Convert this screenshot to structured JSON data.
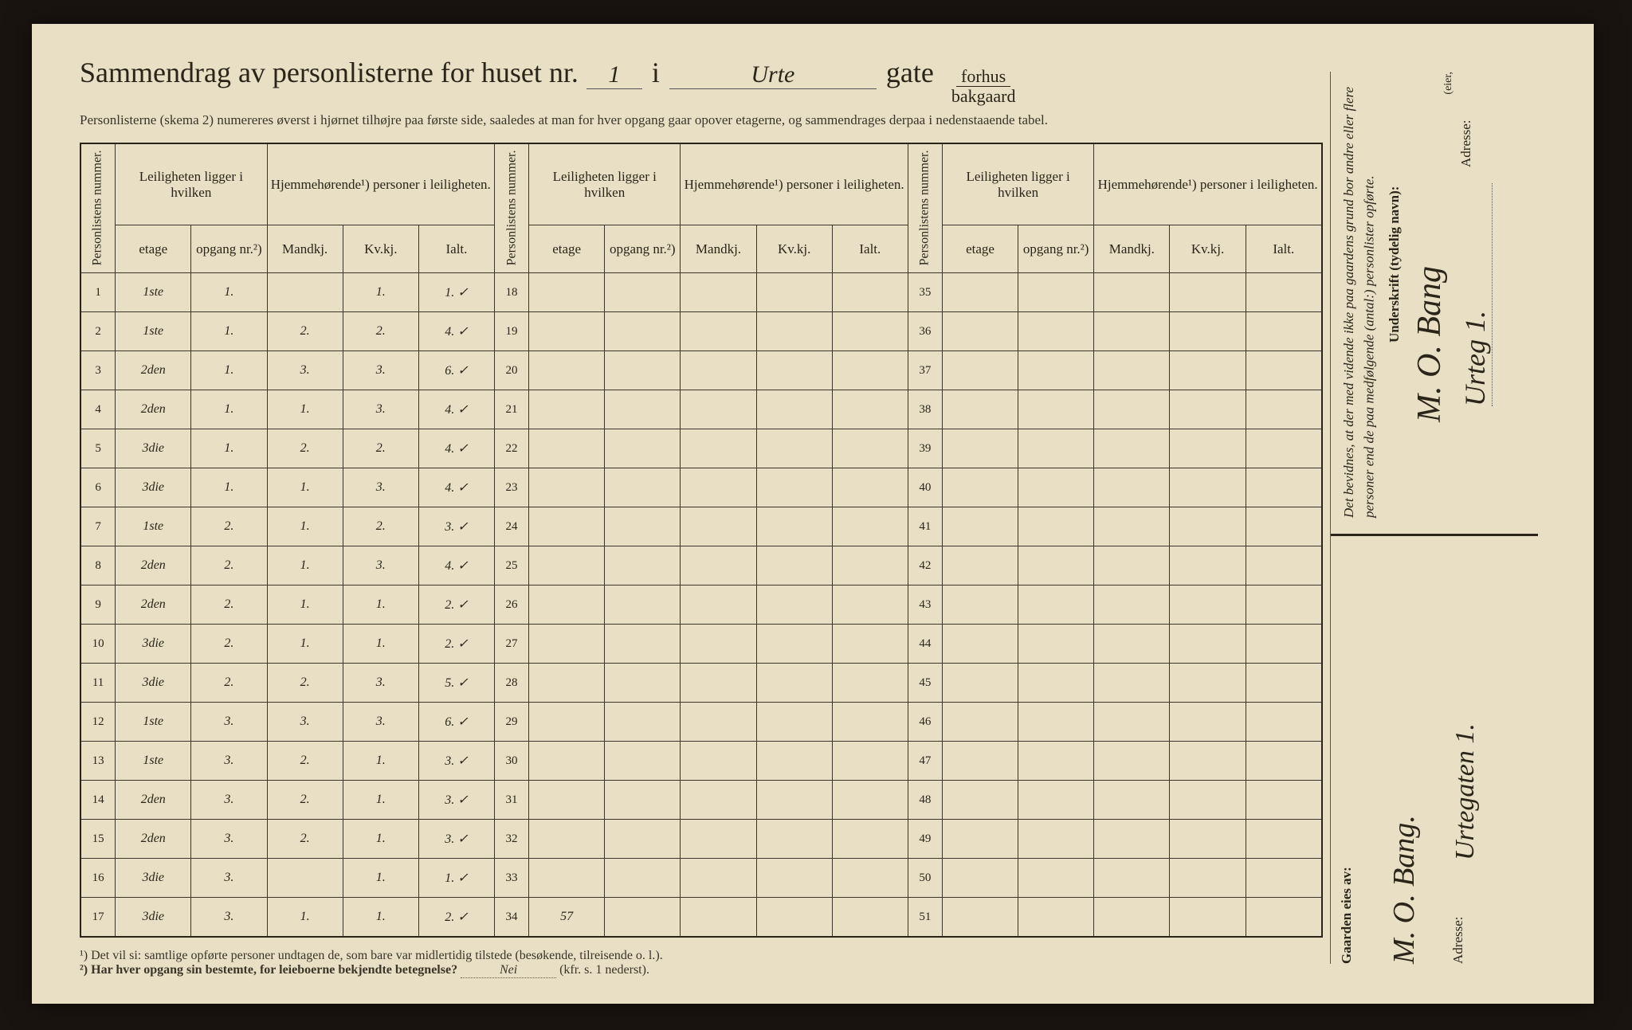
{
  "title": {
    "prefix": "Sammendrag av personlisterne for huset nr.",
    "house_nr": "1",
    "word_i": "i",
    "street": "Urte",
    "word_gate": "gate",
    "forhus": "forhus",
    "bakgaard": "bakgaard"
  },
  "subtitle": "Personlisterne (skema 2) numereres øverst i hjørnet tilhøjre paa første side, saaledes at man for hver opgang gaar opover etagerne, og sammendrages derpaa i nedenstaaende tabel.",
  "headers": {
    "personlistens_nummer": "Personlistens nummer.",
    "leiligheten": "Leiligheten ligger i hvilken",
    "hjemmehorende": "Hjemmehørende¹) personer i leiligheten.",
    "etage": "etage",
    "opgang": "opgang nr.²)",
    "mandkj": "Mandkj.",
    "kvkj": "Kv.kj.",
    "ialt": "Ialt."
  },
  "rows": [
    {
      "n": "1",
      "etage": "1ste",
      "opg": "1.",
      "m": "",
      "k": "1.",
      "i": "1. ✓"
    },
    {
      "n": "2",
      "etage": "1ste",
      "opg": "1.",
      "m": "2.",
      "k": "2.",
      "i": "4. ✓"
    },
    {
      "n": "3",
      "etage": "2den",
      "opg": "1.",
      "m": "3.",
      "k": "3.",
      "i": "6. ✓"
    },
    {
      "n": "4",
      "etage": "2den",
      "opg": "1.",
      "m": "1.",
      "k": "3.",
      "i": "4. ✓"
    },
    {
      "n": "5",
      "etage": "3die",
      "opg": "1.",
      "m": "2.",
      "k": "2.",
      "i": "4. ✓"
    },
    {
      "n": "6",
      "etage": "3die",
      "opg": "1.",
      "m": "1.",
      "k": "3.",
      "i": "4. ✓"
    },
    {
      "n": "7",
      "etage": "1ste",
      "opg": "2.",
      "m": "1.",
      "k": "2.",
      "i": "3. ✓"
    },
    {
      "n": "8",
      "etage": "2den",
      "opg": "2.",
      "m": "1.",
      "k": "3.",
      "i": "4. ✓"
    },
    {
      "n": "9",
      "etage": "2den",
      "opg": "2.",
      "m": "1.",
      "k": "1.",
      "i": "2. ✓"
    },
    {
      "n": "10",
      "etage": "3die",
      "opg": "2.",
      "m": "1.",
      "k": "1.",
      "i": "2. ✓"
    },
    {
      "n": "11",
      "etage": "3die",
      "opg": "2.",
      "m": "2.",
      "k": "3.",
      "i": "5. ✓"
    },
    {
      "n": "12",
      "etage": "1ste",
      "opg": "3.",
      "m": "3.",
      "k": "3.",
      "i": "6. ✓"
    },
    {
      "n": "13",
      "etage": "1ste",
      "opg": "3.",
      "m": "2.",
      "k": "1.",
      "i": "3. ✓"
    },
    {
      "n": "14",
      "etage": "2den",
      "opg": "3.",
      "m": "2.",
      "k": "1.",
      "i": "3. ✓"
    },
    {
      "n": "15",
      "etage": "2den",
      "opg": "3.",
      "m": "2.",
      "k": "1.",
      "i": "3. ✓"
    },
    {
      "n": "16",
      "etage": "3die",
      "opg": "3.",
      "m": "",
      "k": "1.",
      "i": "1. ✓"
    },
    {
      "n": "17",
      "etage": "3die",
      "opg": "3.",
      "m": "1.",
      "k": "1.",
      "i": "2. ✓"
    }
  ],
  "col2_nums": [
    "18",
    "19",
    "20",
    "21",
    "22",
    "23",
    "24",
    "25",
    "26",
    "27",
    "28",
    "29",
    "30",
    "31",
    "32",
    "33",
    "34"
  ],
  "col2_extra": "57",
  "col3_nums": [
    "35",
    "36",
    "37",
    "38",
    "39",
    "40",
    "41",
    "42",
    "43",
    "44",
    "45",
    "46",
    "47",
    "48",
    "49",
    "50",
    "51"
  ],
  "footnotes": {
    "f1": "¹) Det vil si: samtlige opførte personer undtagen de, som bare var midlertidig tilstede (besøkende, tilreisende o. l.).",
    "f2_prefix": "²) Har hver opgang sin bestemte, for leieboerne bekjendte betegnelse?",
    "f2_answer": "Nei",
    "f2_suffix": "(kfr. s. 1 nederst)."
  },
  "right": {
    "attestation": "Det bevidnes, at der med vidende ikke paa gaardens grund bor andre eller flere personer end de paa medfølgende (antal:) personlister opførte.",
    "underskrift_label": "Underskrift (tydelig navn):",
    "signature": "M. O. Bang",
    "adresse_label": "Adresse:",
    "adresse1": "Urteg 1.",
    "eier_suffix": "(eier,",
    "gaarden_eies": "Gaarden eies av:",
    "owner_sig": "M. O. Bang.",
    "adresse2": "Urtegaten 1."
  },
  "colors": {
    "paper": "#e8dfc5",
    "ink": "#2a2518",
    "background": "#1a1410"
  }
}
